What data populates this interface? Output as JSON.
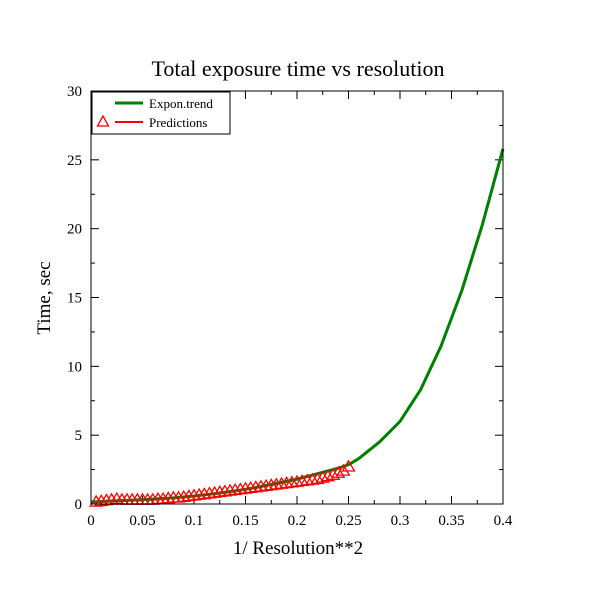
{
  "chart_data": {
    "type": "line",
    "title": "Total exposure time vs resolution",
    "xlabel": "1/ Resolution**2",
    "ylabel": "Time, sec",
    "xlim": [
      0,
      0.4
    ],
    "ylim": [
      0,
      30
    ],
    "x_ticks": [
      {
        "value": 0,
        "label": "0"
      },
      {
        "value": 0.05,
        "label": "0.05"
      },
      {
        "value": 0.1,
        "label": "0.1"
      },
      {
        "value": 0.15,
        "label": "0.15"
      },
      {
        "value": 0.2,
        "label": "0.2"
      },
      {
        "value": 0.25,
        "label": "0.25"
      },
      {
        "value": 0.3,
        "label": "0.3"
      },
      {
        "value": 0.35,
        "label": "0.35"
      },
      {
        "value": 0.4,
        "label": "0.4"
      }
    ],
    "y_ticks": [
      {
        "value": 0,
        "label": "0"
      },
      {
        "value": 5,
        "label": "5"
      },
      {
        "value": 10,
        "label": "10"
      },
      {
        "value": 15,
        "label": "15"
      },
      {
        "value": 20,
        "label": "20"
      },
      {
        "value": 25,
        "label": "25"
      },
      {
        "value": 30,
        "label": "30"
      }
    ],
    "grid": false,
    "legend_position": "top-left",
    "series": [
      {
        "name": "Expon.trend",
        "kind": "line",
        "color": "#008000",
        "x": [
          0.0,
          0.02,
          0.04,
          0.06,
          0.08,
          0.1,
          0.12,
          0.14,
          0.16,
          0.18,
          0.2,
          0.22,
          0.24,
          0.25,
          0.26,
          0.28,
          0.3,
          0.32,
          0.34,
          0.36,
          0.38,
          0.4
        ],
        "y": [
          0.15,
          0.22,
          0.28,
          0.35,
          0.45,
          0.58,
          0.75,
          0.95,
          1.2,
          1.5,
          1.8,
          2.2,
          2.6,
          2.85,
          3.3,
          4.5,
          6.0,
          8.3,
          11.5,
          15.5,
          20.3,
          25.8
        ]
      },
      {
        "name": "Predictions",
        "kind": "markers",
        "marker": "triangle-open",
        "color": "#ff0000",
        "x": [
          0.005,
          0.01,
          0.015,
          0.02,
          0.025,
          0.03,
          0.035,
          0.04,
          0.045,
          0.05,
          0.055,
          0.06,
          0.065,
          0.07,
          0.075,
          0.08,
          0.085,
          0.09,
          0.095,
          0.1,
          0.105,
          0.11,
          0.115,
          0.12,
          0.125,
          0.13,
          0.135,
          0.14,
          0.145,
          0.15,
          0.155,
          0.16,
          0.165,
          0.17,
          0.175,
          0.18,
          0.185,
          0.19,
          0.195,
          0.2,
          0.205,
          0.21,
          0.215,
          0.22,
          0.225,
          0.23,
          0.235,
          0.24,
          0.245,
          0.25
        ],
        "y": [
          0.15,
          0.2,
          0.25,
          0.3,
          0.35,
          0.3,
          0.3,
          0.3,
          0.3,
          0.3,
          0.3,
          0.3,
          0.35,
          0.35,
          0.4,
          0.45,
          0.45,
          0.5,
          0.55,
          0.6,
          0.65,
          0.7,
          0.75,
          0.8,
          0.85,
          0.9,
          0.95,
          1.0,
          1.05,
          1.1,
          1.15,
          1.2,
          1.25,
          1.3,
          1.35,
          1.4,
          1.45,
          1.5,
          1.55,
          1.6,
          1.65,
          1.7,
          1.75,
          1.8,
          1.9,
          2.0,
          2.1,
          2.25,
          2.4,
          2.7
        ]
      }
    ]
  }
}
